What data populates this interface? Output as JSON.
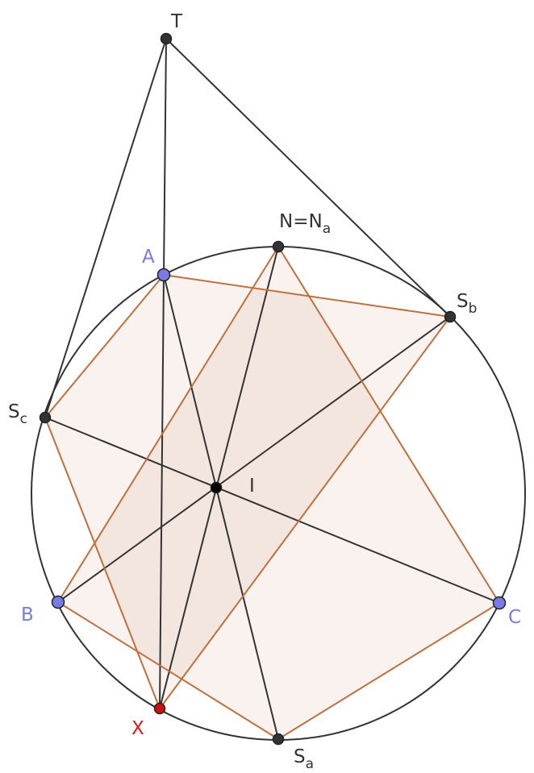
{
  "colors": {
    "circle": "#333333",
    "black_segment": "#333333",
    "orange_segment": "#c0703f",
    "fill": "#c0703f",
    "point_dark": "#333333",
    "point_blue": "#7a7ae6",
    "point_red": "#cc1111"
  },
  "labels": {
    "T": "T",
    "N": "N=N",
    "N_sub": "a",
    "A": "A",
    "Sb": "S",
    "Sb_sub": "b",
    "Sc": "S",
    "Sc_sub": "c",
    "I": "I",
    "B": "B",
    "C": "C",
    "X": "X",
    "Sa": "S",
    "Sa_sub": "a"
  },
  "points": [
    "T",
    "N",
    "A",
    "Sb",
    "Sc",
    "I",
    "B",
    "C",
    "X",
    "Sa"
  ],
  "black_segments": [
    [
      "T",
      "A"
    ],
    [
      "T",
      "Sc"
    ],
    [
      "T",
      "Sb"
    ],
    [
      "A",
      "X"
    ],
    [
      "A",
      "Sa"
    ],
    [
      "Sb",
      "B"
    ],
    [
      "Sc",
      "C"
    ],
    [
      "N",
      "X"
    ]
  ],
  "orange_segments": [
    [
      "A",
      "Sb"
    ],
    [
      "Sb",
      "X"
    ],
    [
      "X",
      "Sc"
    ],
    [
      "Sc",
      "A"
    ],
    [
      "N",
      "B"
    ],
    [
      "B",
      "Sa"
    ],
    [
      "Sa",
      "C"
    ],
    [
      "C",
      "N"
    ]
  ],
  "shaded_polygons": [
    [
      "A",
      "Sb",
      "X",
      "Sc"
    ],
    [
      "N",
      "C",
      "Sa",
      "B"
    ]
  ]
}
